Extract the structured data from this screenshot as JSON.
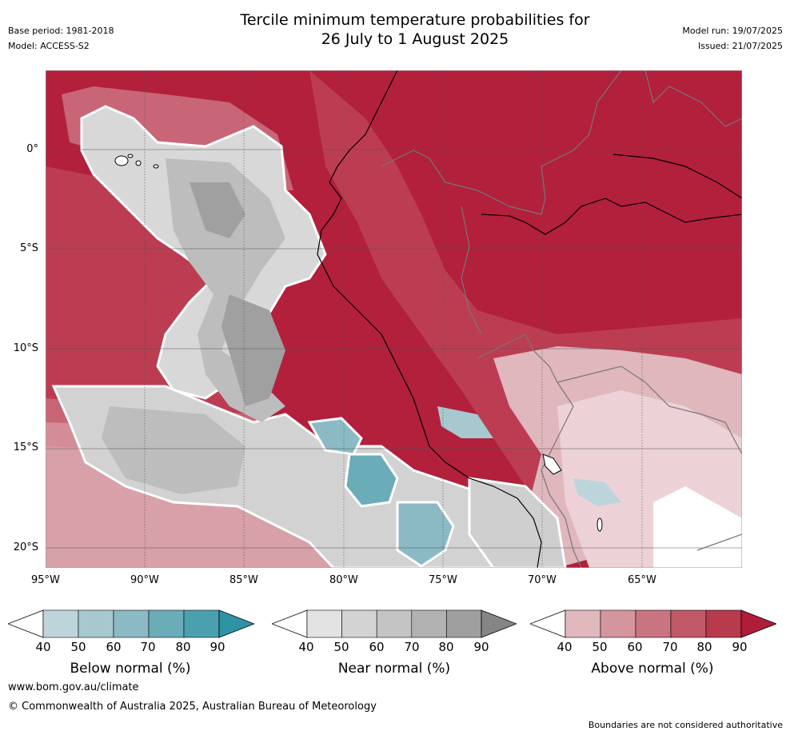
{
  "header": {
    "title_line1": "Tercile minimum temperature probabilities for",
    "title_line2": "26 July to 1 August 2025",
    "base_period": "Base period: 1981-2018",
    "model": "Model: ACCESS-S2",
    "model_run": "Model run: 19/07/2025",
    "issued": "Issued: 21/07/2025"
  },
  "map": {
    "lat_labels": [
      "0°",
      "5°S",
      "10°S",
      "15°S",
      "20°S"
    ],
    "lon_labels": [
      "95°W",
      "90°W",
      "85°W",
      "80°W",
      "75°W",
      "70°W",
      "65°W"
    ]
  },
  "colorbars": [
    {
      "label": "Below normal (%)",
      "ticks": [
        "40",
        "50",
        "60",
        "70",
        "80",
        "90"
      ],
      "colors": [
        "#ffffff",
        "#bdd5da",
        "#a6c8ce",
        "#8bbac4",
        "#6aacb8",
        "#4aa0ae",
        "#2e93a2"
      ]
    },
    {
      "label": "Near normal (%)",
      "ticks": [
        "40",
        "50",
        "60",
        "70",
        "80",
        "90"
      ],
      "colors": [
        "#ffffff",
        "#e3e3e3",
        "#d3d3d3",
        "#c4c4c4",
        "#b2b2b2",
        "#9f9f9f",
        "#858585"
      ]
    },
    {
      "label": "Above normal (%)",
      "ticks": [
        "40",
        "50",
        "60",
        "70",
        "80",
        "90"
      ],
      "colors": [
        "#ffffff",
        "#e0b8be",
        "#d4959e",
        "#c97581",
        "#c05a68",
        "#b73a4d",
        "#af1d38"
      ]
    }
  ],
  "footer": {
    "website": "www.bom.gov.au/climate",
    "copyright": "© Commonwealth of Australia 2025, Australian Bureau of Meteorology",
    "disclaimer": "Boundaries are not considered authoritative"
  }
}
